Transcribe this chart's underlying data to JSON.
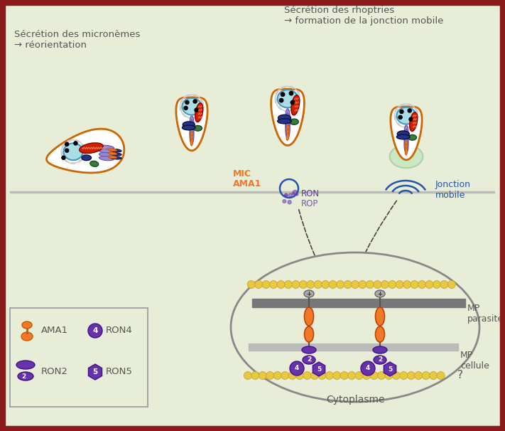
{
  "bg_color": "#e8edd8",
  "border_color": "#8b1a1a",
  "text_color": "#555555",
  "orange_color": "#f07828",
  "purple_color": "#6633aa",
  "gray_color": "#888888",
  "yellow_color": "#e8c840",
  "green_cell_color": "#c8e8c0",
  "blue_color": "#2255aa",
  "red_color": "#cc2200",
  "parasite_fill": "#ffffff",
  "parasite_border": "#cc6600",
  "nucleus_fill": "#aadde8",
  "nucleus_border": "#4499bb",
  "nucleus_swirl": "#cccccc",
  "dark_blue_organ": "#223388",
  "label1": "Sécrétion des micronèmes",
  "label1b": "→ réorientation",
  "label2": "Sécrétion des rhoptries",
  "label2b": "→ formation de la jonction mobile",
  "label_MIC": "MIC",
  "label_AMA": "AMA1",
  "label_RON": "RON",
  "label_ROP": "ROP",
  "label_JM": "Jonction\nmobile",
  "label_MP_parasite": "MP\nparasite",
  "label_MP_cellule": "MP\ncellule",
  "label_cytoplasme": "Cytoplasme",
  "label_AMA1": "AMA1",
  "label_RON4": "RON4",
  "label_RON2": "RON2",
  "label_RON5": "RON5",
  "label_Q": "?"
}
